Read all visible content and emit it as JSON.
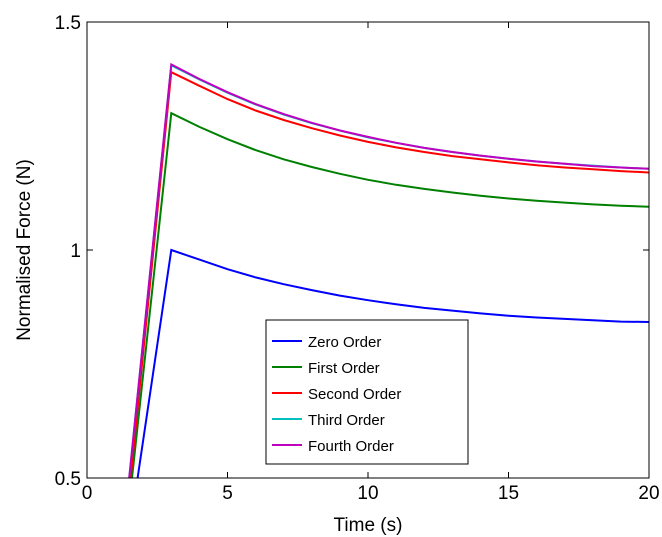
{
  "chart_data": {
    "type": "line",
    "title": "",
    "xlabel": "Time (s)",
    "ylabel": "Normalised Force (N)",
    "xlim": [
      0,
      20
    ],
    "ylim": [
      0.5,
      1.5
    ],
    "xticks": [
      0,
      5,
      10,
      15,
      20
    ],
    "xtick_labels": [
      "0",
      "5",
      "10",
      "15",
      "20"
    ],
    "yticks": [
      0.5,
      1,
      1.5
    ],
    "ytick_labels": [
      "0.5",
      "1",
      "1.5"
    ],
    "grid": false,
    "legend_position": "bottom-center",
    "series": [
      {
        "name": "Zero Order",
        "color": "#0000ff",
        "x": [
          1.8,
          3.0,
          4.0,
          5.0,
          6.0,
          7.0,
          8.0,
          9.0,
          10.0,
          11.0,
          12.0,
          13.0,
          14.0,
          15.0,
          16.0,
          17.0,
          18.0,
          19.0,
          20.0
        ],
        "y": [
          0.5,
          1.0,
          0.979,
          0.958,
          0.94,
          0.925,
          0.912,
          0.9,
          0.89,
          0.881,
          0.873,
          0.867,
          0.861,
          0.856,
          0.852,
          0.849,
          0.846,
          0.843,
          0.842
        ]
      },
      {
        "name": "First Order",
        "color": "#008000",
        "x": [
          1.6,
          3.0,
          4.0,
          5.0,
          6.0,
          7.0,
          8.0,
          9.0,
          10.0,
          11.0,
          12.0,
          13.0,
          14.0,
          15.0,
          16.0,
          17.0,
          18.0,
          19.0,
          20.0
        ],
        "y": [
          0.5,
          1.3,
          1.27,
          1.243,
          1.219,
          1.199,
          1.182,
          1.167,
          1.154,
          1.143,
          1.134,
          1.126,
          1.119,
          1.113,
          1.108,
          1.104,
          1.1,
          1.097,
          1.095
        ]
      },
      {
        "name": "Second Order",
        "color": "#ff0000",
        "x": [
          1.55,
          3.0,
          4.0,
          5.0,
          6.0,
          7.0,
          8.0,
          9.0,
          10.0,
          11.0,
          12.0,
          13.0,
          14.0,
          15.0,
          16.0,
          17.0,
          18.0,
          19.0,
          20.0
        ],
        "y": [
          0.5,
          1.39,
          1.36,
          1.331,
          1.306,
          1.285,
          1.267,
          1.251,
          1.237,
          1.225,
          1.215,
          1.206,
          1.199,
          1.192,
          1.186,
          1.181,
          1.177,
          1.173,
          1.17
        ]
      },
      {
        "name": "Third Order",
        "color": "#00bfbf",
        "x": [
          1.5,
          3.0,
          4.0,
          5.0,
          6.0,
          7.0,
          8.0,
          9.0,
          10.0,
          11.0,
          12.0,
          13.0,
          14.0,
          15.0,
          16.0,
          17.0,
          18.0,
          19.0,
          20.0
        ],
        "y": [
          0.5,
          1.405,
          1.374,
          1.345,
          1.319,
          1.297,
          1.278,
          1.262,
          1.247,
          1.235,
          1.224,
          1.215,
          1.207,
          1.2,
          1.194,
          1.189,
          1.185,
          1.181,
          1.178
        ]
      },
      {
        "name": "Fourth Order",
        "color": "#bf00bf",
        "x": [
          1.5,
          3.0,
          4.0,
          5.0,
          6.0,
          7.0,
          8.0,
          9.0,
          10.0,
          11.0,
          12.0,
          13.0,
          14.0,
          15.0,
          16.0,
          17.0,
          18.0,
          19.0,
          20.0
        ],
        "y": [
          0.5,
          1.407,
          1.375,
          1.346,
          1.32,
          1.298,
          1.279,
          1.262,
          1.248,
          1.235,
          1.224,
          1.215,
          1.207,
          1.2,
          1.194,
          1.189,
          1.184,
          1.181,
          1.178
        ]
      }
    ]
  }
}
